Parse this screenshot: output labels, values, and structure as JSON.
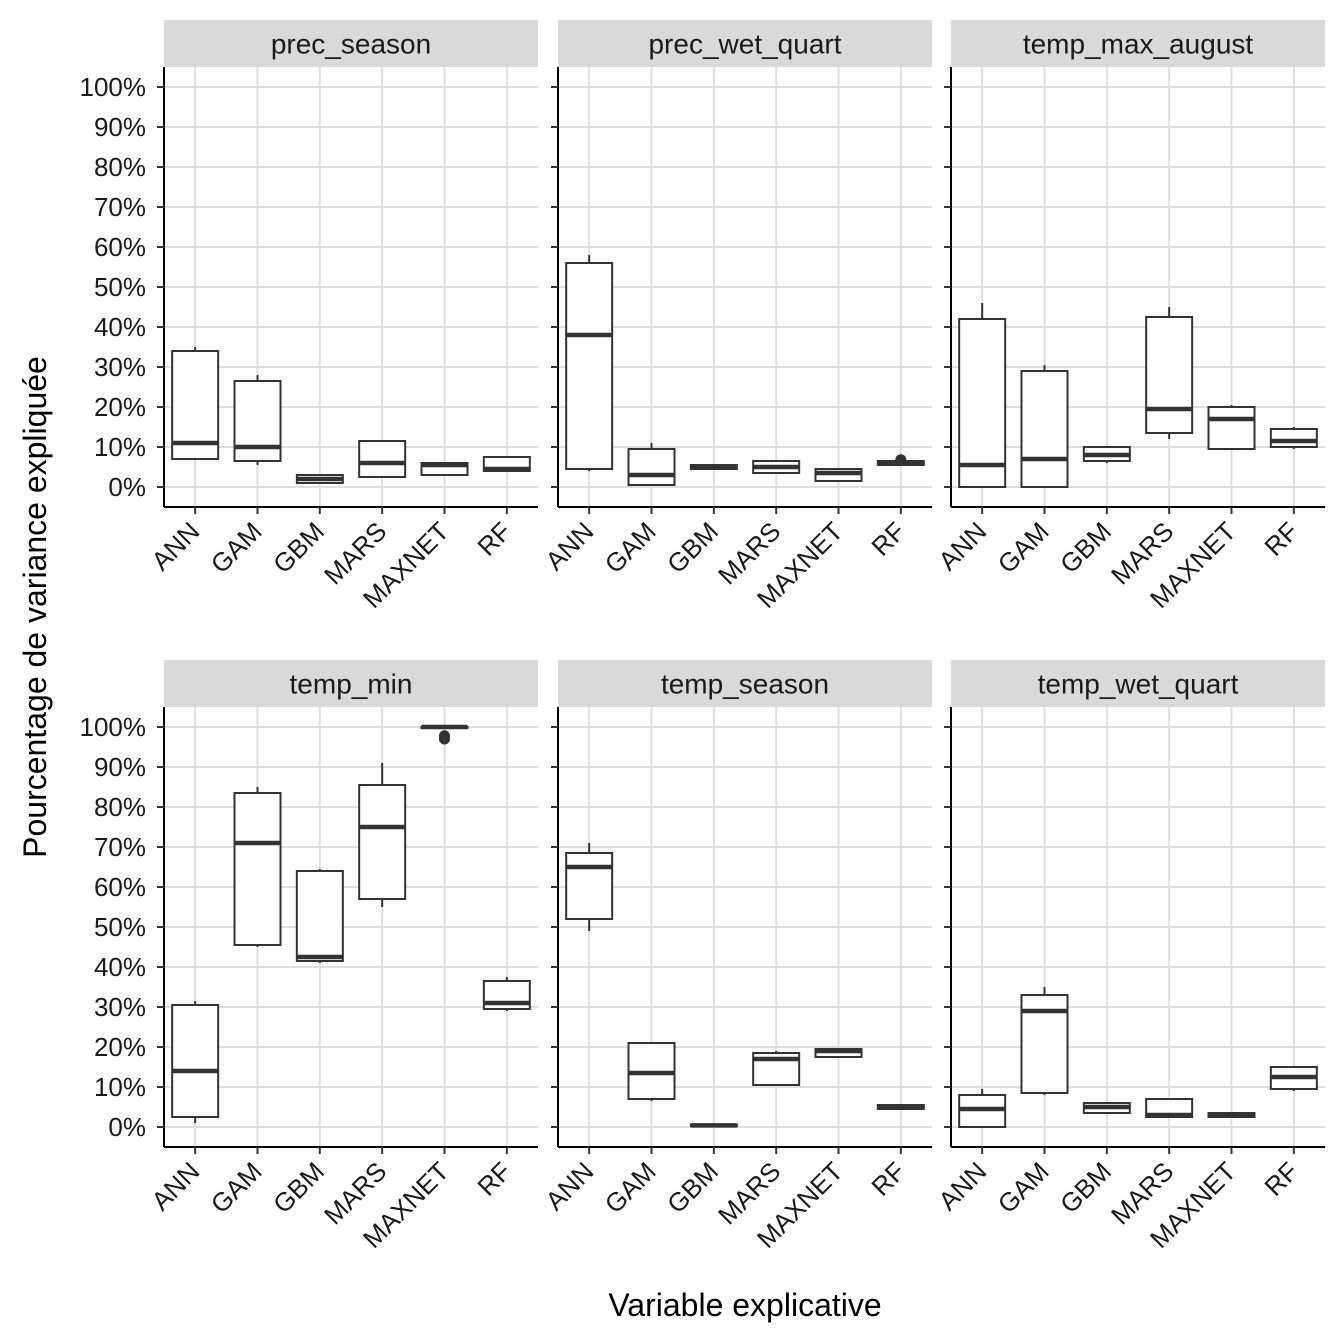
{
  "chart_data": {
    "type": "boxplot",
    "xlabel": "Variable explicative",
    "ylabel": "Pourcentage de variance expliquée",
    "ylim": [
      -5,
      105
    ],
    "y_ticks": [
      "0%",
      "10%",
      "20%",
      "30%",
      "40%",
      "50%",
      "60%",
      "70%",
      "80%",
      "90%",
      "100%"
    ],
    "y_tick_values": [
      0,
      10,
      20,
      30,
      40,
      50,
      60,
      70,
      80,
      90,
      100
    ],
    "categories": [
      "ANN",
      "GAM",
      "GBM",
      "MARS",
      "MAXNET",
      "RF"
    ],
    "grid": true,
    "panels": [
      {
        "name": "prec_season",
        "boxes": [
          {
            "category": "ANN",
            "min": 7,
            "q1": 7,
            "median": 11,
            "q3": 34,
            "max": 35,
            "outliers": []
          },
          {
            "category": "GAM",
            "min": 5.5,
            "q1": 6.5,
            "median": 10,
            "q3": 26.5,
            "max": 28,
            "outliers": []
          },
          {
            "category": "GBM",
            "min": 1,
            "q1": 1,
            "median": 2,
            "q3": 3,
            "max": 3,
            "outliers": []
          },
          {
            "category": "MARS",
            "min": 2.5,
            "q1": 2.5,
            "median": 6,
            "q3": 11.5,
            "max": 11.5,
            "outliers": []
          },
          {
            "category": "MAXNET",
            "min": 3,
            "q1": 3,
            "median": 5.5,
            "q3": 6,
            "max": 6,
            "outliers": []
          },
          {
            "category": "RF",
            "min": 4,
            "q1": 4,
            "median": 4.5,
            "q3": 7.5,
            "max": 7.5,
            "outliers": []
          }
        ]
      },
      {
        "name": "prec_wet_quart",
        "boxes": [
          {
            "category": "ANN",
            "min": 4,
            "q1": 4.5,
            "median": 38,
            "q3": 56,
            "max": 58,
            "outliers": []
          },
          {
            "category": "GAM",
            "min": 0.5,
            "q1": 0.5,
            "median": 3,
            "q3": 9.5,
            "max": 11,
            "outliers": []
          },
          {
            "category": "GBM",
            "min": 4.5,
            "q1": 4.5,
            "median": 5,
            "q3": 5.5,
            "max": 5.5,
            "outliers": []
          },
          {
            "category": "MARS",
            "min": 3.5,
            "q1": 3.5,
            "median": 5,
            "q3": 6.5,
            "max": 6.5,
            "outliers": []
          },
          {
            "category": "MAXNET",
            "min": 1.5,
            "q1": 1.5,
            "median": 3.5,
            "q3": 4.5,
            "max": 4.5,
            "outliers": []
          },
          {
            "category": "RF",
            "min": 5.5,
            "q1": 5.5,
            "median": 6,
            "q3": 6.5,
            "max": 6.5,
            "outliers": [
              6.8
            ]
          }
        ]
      },
      {
        "name": "temp_max_august",
        "boxes": [
          {
            "category": "ANN",
            "min": 0,
            "q1": 0,
            "median": 5.5,
            "q3": 42,
            "max": 46,
            "outliers": []
          },
          {
            "category": "GAM",
            "min": 0,
            "q1": 0,
            "median": 7,
            "q3": 29,
            "max": 30.5,
            "outliers": []
          },
          {
            "category": "GBM",
            "min": 6,
            "q1": 6.5,
            "median": 8,
            "q3": 10,
            "max": 10,
            "outliers": []
          },
          {
            "category": "MARS",
            "min": 12,
            "q1": 13.5,
            "median": 19.5,
            "q3": 42.5,
            "max": 45,
            "outliers": []
          },
          {
            "category": "MAXNET",
            "min": 9.5,
            "q1": 9.5,
            "median": 17,
            "q3": 20,
            "max": 20.5,
            "outliers": []
          },
          {
            "category": "RF",
            "min": 9.5,
            "q1": 10,
            "median": 11.5,
            "q3": 14.5,
            "max": 15,
            "outliers": []
          }
        ]
      },
      {
        "name": "temp_min",
        "boxes": [
          {
            "category": "ANN",
            "min": 1,
            "q1": 2.5,
            "median": 14,
            "q3": 30.5,
            "max": 31.5,
            "outliers": []
          },
          {
            "category": "GAM",
            "min": 45,
            "q1": 45.5,
            "median": 71,
            "q3": 83.5,
            "max": 85,
            "outliers": []
          },
          {
            "category": "GBM",
            "min": 41,
            "q1": 41.5,
            "median": 42.5,
            "q3": 64,
            "max": 64.5,
            "outliers": []
          },
          {
            "category": "MARS",
            "min": 55,
            "q1": 57,
            "median": 75,
            "q3": 85.5,
            "max": 91,
            "outliers": []
          },
          {
            "category": "MAXNET",
            "min": 100,
            "q1": 100,
            "median": 100,
            "q3": 100,
            "max": 100,
            "outliers": [
              97,
              97.8
            ]
          },
          {
            "category": "RF",
            "min": 29,
            "q1": 29.5,
            "median": 31,
            "q3": 36.5,
            "max": 37.5,
            "outliers": []
          }
        ]
      },
      {
        "name": "temp_season",
        "boxes": [
          {
            "category": "ANN",
            "min": 49,
            "q1": 52,
            "median": 65,
            "q3": 68.5,
            "max": 71,
            "outliers": []
          },
          {
            "category": "GAM",
            "min": 6.5,
            "q1": 7,
            "median": 13.5,
            "q3": 21,
            "max": 21,
            "outliers": []
          },
          {
            "category": "GBM",
            "min": 0.2,
            "q1": 0.2,
            "median": 0.4,
            "q3": 0.6,
            "max": 0.6,
            "outliers": []
          },
          {
            "category": "MARS",
            "min": 10.5,
            "q1": 10.5,
            "median": 17,
            "q3": 18.5,
            "max": 19,
            "outliers": []
          },
          {
            "category": "MAXNET",
            "min": 17.5,
            "q1": 17.5,
            "median": 19,
            "q3": 19.5,
            "max": 19.5,
            "outliers": []
          },
          {
            "category": "RF",
            "min": 4.5,
            "q1": 4.5,
            "median": 5,
            "q3": 5.5,
            "max": 5.5,
            "outliers": []
          }
        ]
      },
      {
        "name": "temp_wet_quart",
        "boxes": [
          {
            "category": "ANN",
            "min": 0,
            "q1": 0,
            "median": 4.5,
            "q3": 8,
            "max": 9.5,
            "outliers": []
          },
          {
            "category": "GAM",
            "min": 8,
            "q1": 8.5,
            "median": 29,
            "q3": 33,
            "max": 35,
            "outliers": []
          },
          {
            "category": "GBM",
            "min": 3.5,
            "q1": 3.5,
            "median": 5,
            "q3": 6,
            "max": 6,
            "outliers": []
          },
          {
            "category": "MARS",
            "min": 2.5,
            "q1": 2.5,
            "median": 3,
            "q3": 7,
            "max": 7,
            "outliers": []
          },
          {
            "category": "MAXNET",
            "min": 2.5,
            "q1": 2.5,
            "median": 3,
            "q3": 3.5,
            "max": 3.5,
            "outliers": []
          },
          {
            "category": "RF",
            "min": 9,
            "q1": 9.5,
            "median": 12.5,
            "q3": 15,
            "max": 15,
            "outliers": []
          }
        ]
      }
    ]
  }
}
